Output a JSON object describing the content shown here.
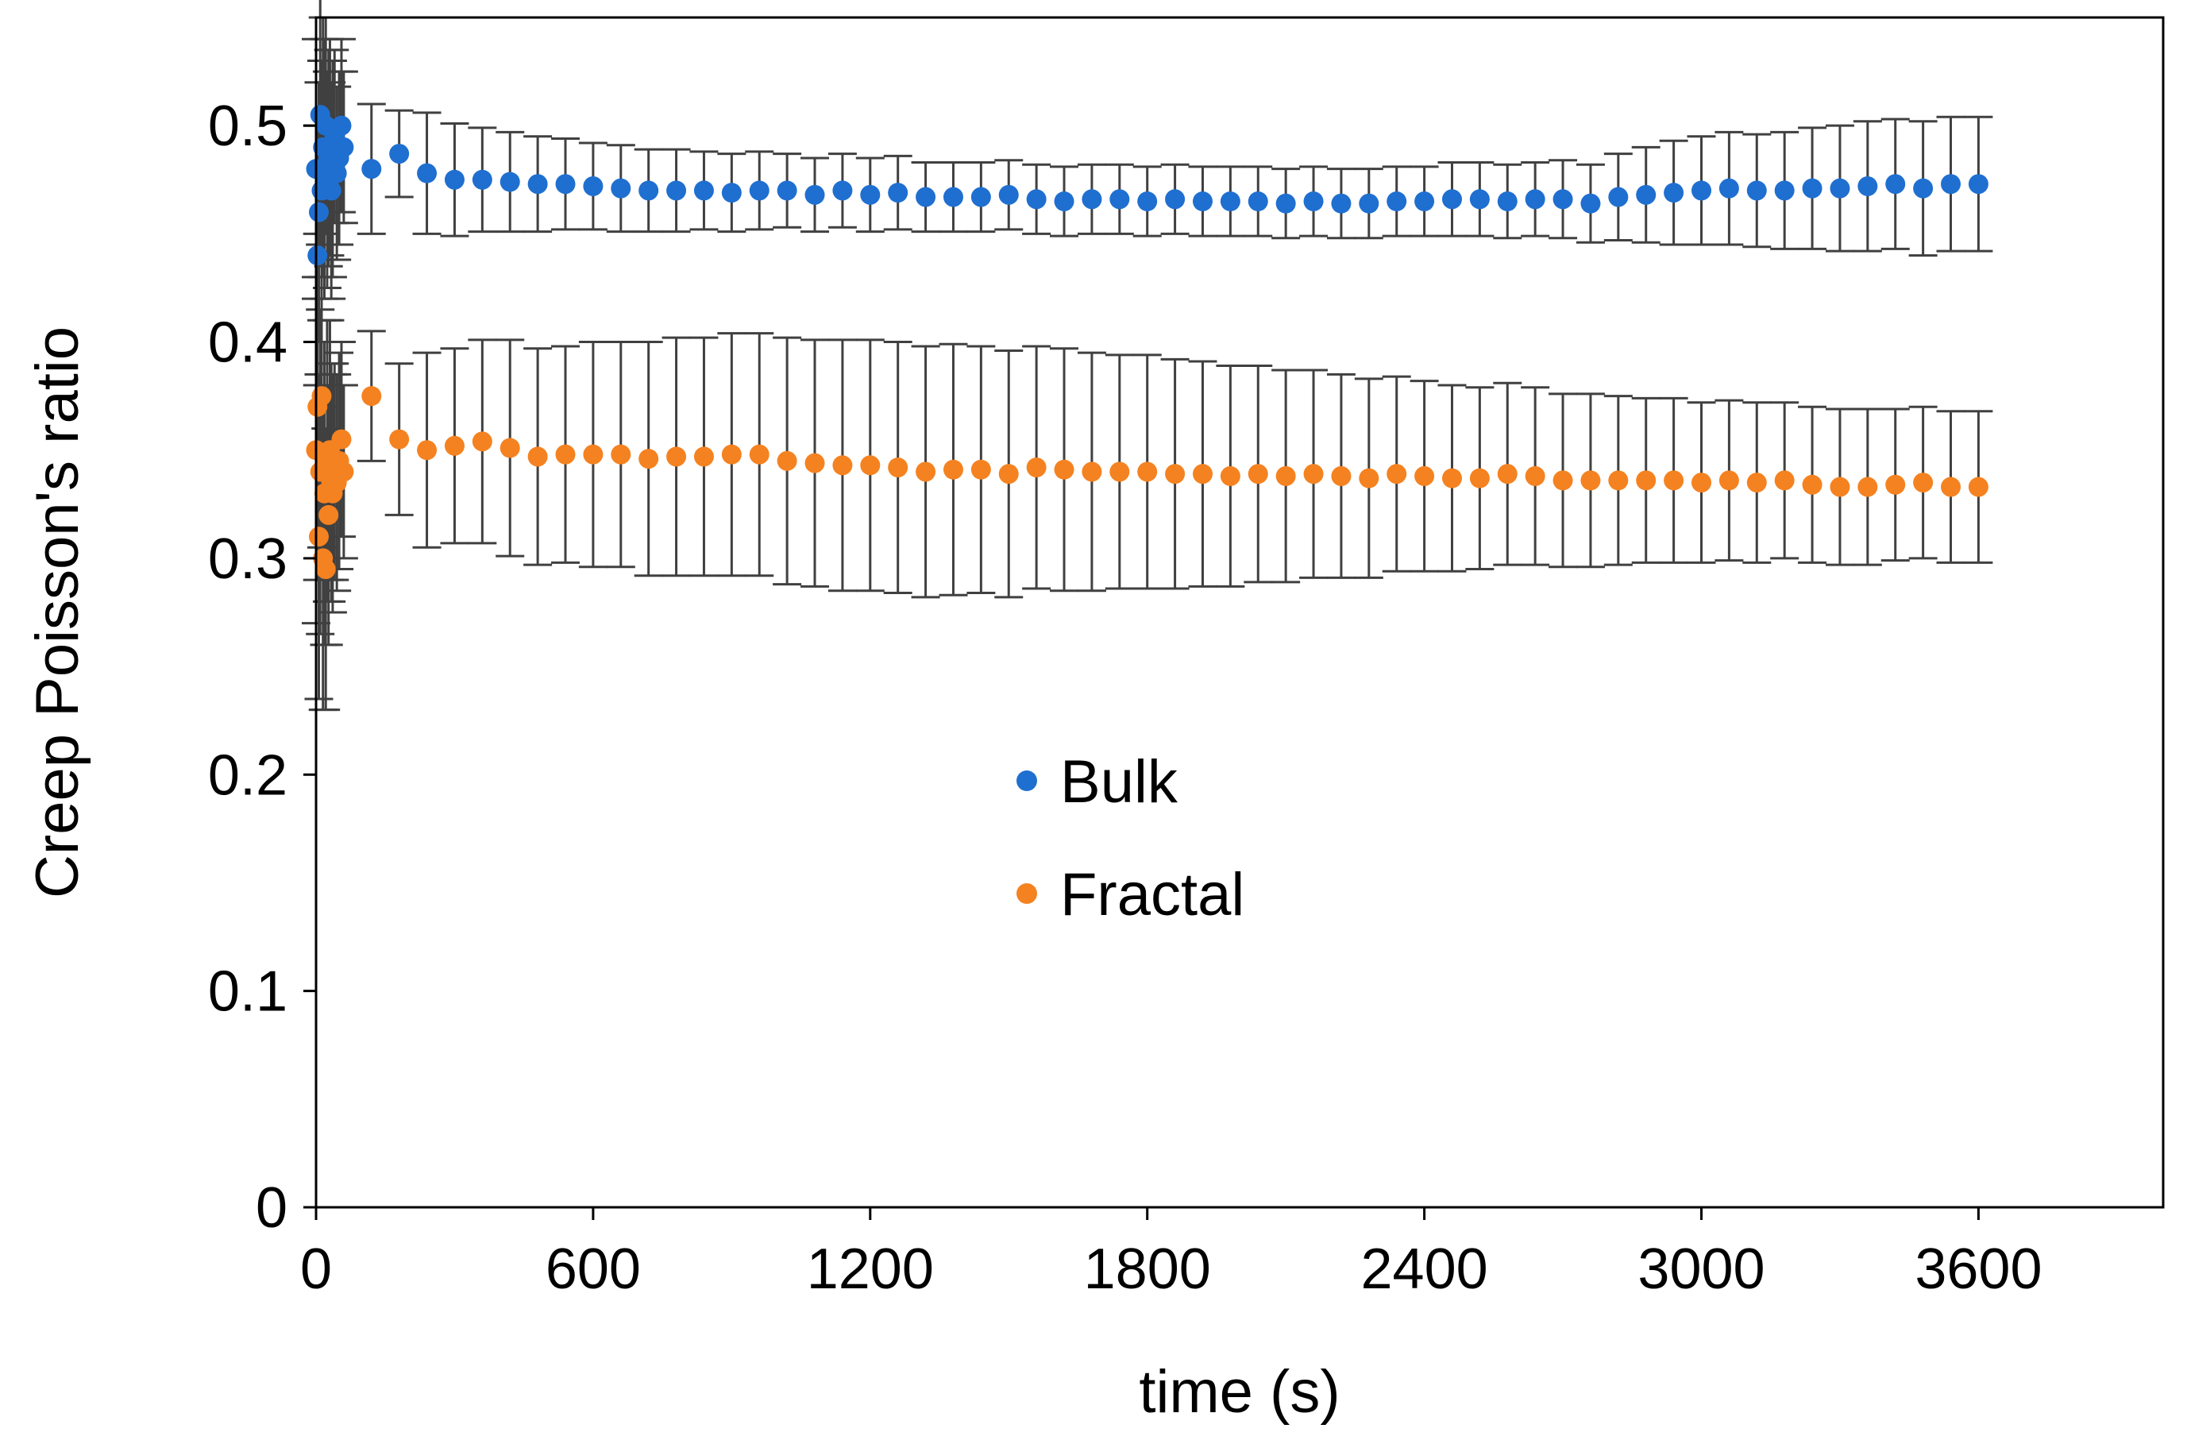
{
  "chart_data": {
    "type": "scatter",
    "title": "",
    "xlabel": "time (s)",
    "ylabel": "Creep Poisson's ratio",
    "xlim": [
      0,
      4000
    ],
    "ylim": [
      0,
      0.55
    ],
    "xticks": [
      "0",
      "600",
      "1200",
      "1800",
      "2400",
      "3000",
      "3600"
    ],
    "yticks": [
      "0",
      "0.1",
      "0.2",
      "0.3",
      "0.4",
      "0.5"
    ],
    "grid": false,
    "legend_position": "center",
    "series": [
      {
        "name": "Bulk",
        "color": "#1f6fd0",
        "error_bar_color": "#404040",
        "x": [
          0,
          3,
          6,
          9,
          12,
          15,
          18,
          21,
          24,
          27,
          30,
          33,
          36,
          40,
          45,
          50,
          55,
          60,
          120,
          180,
          240,
          300,
          360,
          420,
          480,
          540,
          600,
          660,
          720,
          780,
          840,
          900,
          960,
          1020,
          1080,
          1140,
          1200,
          1260,
          1320,
          1380,
          1440,
          1500,
          1560,
          1620,
          1680,
          1740,
          1800,
          1860,
          1920,
          1980,
          2040,
          2100,
          2160,
          2220,
          2280,
          2340,
          2400,
          2460,
          2520,
          2580,
          2640,
          2700,
          2760,
          2820,
          2880,
          2940,
          3000,
          3060,
          3120,
          3180,
          3240,
          3300,
          3360,
          3420,
          3480,
          3540,
          3600
        ],
        "y": [
          0.48,
          0.44,
          0.46,
          0.505,
          0.47,
          0.49,
          0.48,
          0.5,
          0.475,
          0.485,
          0.49,
          0.47,
          0.48,
          0.495,
          0.478,
          0.485,
          0.5,
          0.49,
          0.48,
          0.487,
          0.478,
          0.475,
          0.475,
          0.474,
          0.473,
          0.473,
          0.472,
          0.471,
          0.47,
          0.47,
          0.47,
          0.469,
          0.47,
          0.47,
          0.468,
          0.47,
          0.468,
          0.469,
          0.467,
          0.467,
          0.467,
          0.468,
          0.466,
          0.465,
          0.466,
          0.466,
          0.465,
          0.466,
          0.465,
          0.465,
          0.465,
          0.464,
          0.465,
          0.464,
          0.464,
          0.465,
          0.465,
          0.466,
          0.466,
          0.465,
          0.466,
          0.466,
          0.464,
          0.467,
          0.468,
          0.469,
          0.47,
          0.471,
          0.47,
          0.47,
          0.471,
          0.471,
          0.472,
          0.473,
          0.471,
          0.473,
          0.473
        ],
        "yerr": [
          0.06,
          0.06,
          0.06,
          0.06,
          0.06,
          0.06,
          0.06,
          0.05,
          0.05,
          0.05,
          0.05,
          0.05,
          0.05,
          0.04,
          0.04,
          0.04,
          0.04,
          0.035,
          0.03,
          0.02,
          0.028,
          0.026,
          0.024,
          0.023,
          0.022,
          0.021,
          0.02,
          0.02,
          0.019,
          0.019,
          0.018,
          0.018,
          0.018,
          0.017,
          0.017,
          0.017,
          0.017,
          0.017,
          0.016,
          0.016,
          0.016,
          0.016,
          0.016,
          0.016,
          0.016,
          0.016,
          0.016,
          0.016,
          0.016,
          0.016,
          0.016,
          0.016,
          0.016,
          0.016,
          0.016,
          0.016,
          0.016,
          0.017,
          0.017,
          0.017,
          0.017,
          0.018,
          0.018,
          0.02,
          0.022,
          0.024,
          0.025,
          0.026,
          0.026,
          0.027,
          0.028,
          0.029,
          0.03,
          0.03,
          0.031,
          0.031,
          0.031
        ]
      },
      {
        "name": "Fractal",
        "color": "#f58220",
        "error_bar_color": "#404040",
        "x": [
          0,
          3,
          6,
          9,
          12,
          15,
          18,
          21,
          24,
          27,
          30,
          33,
          36,
          40,
          45,
          50,
          55,
          60,
          120,
          180,
          240,
          300,
          360,
          420,
          480,
          540,
          600,
          660,
          720,
          780,
          840,
          900,
          960,
          1020,
          1080,
          1140,
          1200,
          1260,
          1320,
          1380,
          1440,
          1500,
          1560,
          1620,
          1680,
          1740,
          1800,
          1860,
          1920,
          1980,
          2040,
          2100,
          2160,
          2220,
          2280,
          2340,
          2400,
          2460,
          2520,
          2580,
          2640,
          2700,
          2760,
          2820,
          2880,
          2940,
          3000,
          3060,
          3120,
          3180,
          3240,
          3300,
          3360,
          3420,
          3480,
          3540,
          3600
        ],
        "y": [
          0.35,
          0.37,
          0.31,
          0.34,
          0.375,
          0.3,
          0.33,
          0.295,
          0.345,
          0.32,
          0.35,
          0.335,
          0.33,
          0.34,
          0.335,
          0.345,
          0.355,
          0.34,
          0.375,
          0.355,
          0.35,
          0.352,
          0.354,
          0.351,
          0.347,
          0.348,
          0.348,
          0.348,
          0.346,
          0.347,
          0.347,
          0.348,
          0.348,
          0.345,
          0.344,
          0.343,
          0.343,
          0.342,
          0.34,
          0.341,
          0.341,
          0.339,
          0.342,
          0.341,
          0.34,
          0.34,
          0.34,
          0.339,
          0.339,
          0.338,
          0.339,
          0.338,
          0.339,
          0.338,
          0.337,
          0.339,
          0.338,
          0.337,
          0.337,
          0.339,
          0.338,
          0.336,
          0.336,
          0.336,
          0.336,
          0.336,
          0.335,
          0.336,
          0.335,
          0.336,
          0.334,
          0.333,
          0.333,
          0.334,
          0.335,
          0.333,
          0.333
        ],
        "yerr": [
          0.08,
          0.08,
          0.075,
          0.075,
          0.07,
          0.07,
          0.07,
          0.065,
          0.065,
          0.06,
          0.06,
          0.055,
          0.055,
          0.05,
          0.05,
          0.05,
          0.045,
          0.04,
          0.03,
          0.035,
          0.045,
          0.045,
          0.047,
          0.05,
          0.05,
          0.05,
          0.052,
          0.052,
          0.054,
          0.055,
          0.055,
          0.056,
          0.056,
          0.057,
          0.057,
          0.058,
          0.058,
          0.058,
          0.058,
          0.058,
          0.057,
          0.057,
          0.056,
          0.056,
          0.055,
          0.054,
          0.054,
          0.053,
          0.052,
          0.051,
          0.05,
          0.049,
          0.048,
          0.047,
          0.046,
          0.045,
          0.044,
          0.043,
          0.042,
          0.042,
          0.041,
          0.04,
          0.04,
          0.039,
          0.038,
          0.038,
          0.037,
          0.037,
          0.037,
          0.036,
          0.036,
          0.036,
          0.036,
          0.035,
          0.035,
          0.035,
          0.035
        ]
      }
    ]
  }
}
